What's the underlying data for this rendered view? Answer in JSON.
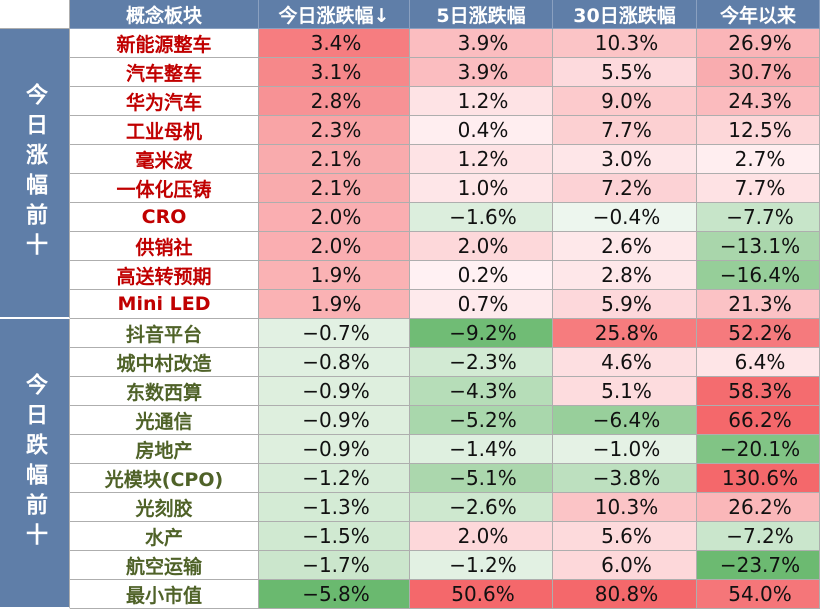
{
  "chart_data": {
    "type": "table",
    "columns": [
      "概念板块",
      "今日涨跌幅↓",
      "5日涨跌幅",
      "30日涨跌幅",
      "今年以来"
    ],
    "groups": [
      {
        "label": "今日涨幅前十",
        "rows": [
          {
            "name": "新能源整车",
            "values": [
              "3.4%",
              "3.9%",
              "10.3%",
              "26.9%"
            ],
            "nums": [
              3.4,
              3.9,
              10.3,
              26.9
            ]
          },
          {
            "name": "汽车整车",
            "values": [
              "3.1%",
              "3.9%",
              "5.5%",
              "30.7%"
            ],
            "nums": [
              3.1,
              3.9,
              5.5,
              30.7
            ]
          },
          {
            "name": "华为汽车",
            "values": [
              "2.8%",
              "1.2%",
              "9.0%",
              "24.3%"
            ],
            "nums": [
              2.8,
              1.2,
              9.0,
              24.3
            ]
          },
          {
            "name": "工业母机",
            "values": [
              "2.3%",
              "0.4%",
              "7.7%",
              "12.5%"
            ],
            "nums": [
              2.3,
              0.4,
              7.7,
              12.5
            ]
          },
          {
            "name": "毫米波",
            "values": [
              "2.1%",
              "1.2%",
              "3.0%",
              "2.7%"
            ],
            "nums": [
              2.1,
              1.2,
              3.0,
              2.7
            ]
          },
          {
            "name": "一体化压铸",
            "values": [
              "2.1%",
              "1.0%",
              "7.2%",
              "7.7%"
            ],
            "nums": [
              2.1,
              1.0,
              7.2,
              7.7
            ]
          },
          {
            "name": "CRO",
            "values": [
              "2.0%",
              "−1.6%",
              "−0.4%",
              "−7.7%"
            ],
            "nums": [
              2.0,
              -1.6,
              -0.4,
              -7.7
            ]
          },
          {
            "name": "供销社",
            "values": [
              "2.0%",
              "2.0%",
              "2.6%",
              "−13.1%"
            ],
            "nums": [
              2.0,
              2.0,
              2.6,
              -13.1
            ]
          },
          {
            "name": "高送转预期",
            "values": [
              "1.9%",
              "0.2%",
              "2.8%",
              "−16.4%"
            ],
            "nums": [
              1.9,
              0.2,
              2.8,
              -16.4
            ]
          },
          {
            "name": "Mini LED",
            "values": [
              "1.9%",
              "0.7%",
              "5.9%",
              "21.3%"
            ],
            "nums": [
              1.9,
              0.7,
              5.9,
              21.3
            ]
          }
        ]
      },
      {
        "label": "今日跌幅前十",
        "rows": [
          {
            "name": "抖音平台",
            "values": [
              "−0.7%",
              "−9.2%",
              "25.8%",
              "52.2%"
            ],
            "nums": [
              -0.7,
              -9.2,
              25.8,
              52.2
            ]
          },
          {
            "name": "城中村改造",
            "values": [
              "−0.8%",
              "−2.3%",
              "4.6%",
              "6.4%"
            ],
            "nums": [
              -0.8,
              -2.3,
              4.6,
              6.4
            ]
          },
          {
            "name": "东数西算",
            "values": [
              "−0.9%",
              "−4.3%",
              "5.1%",
              "58.3%"
            ],
            "nums": [
              -0.9,
              -4.3,
              5.1,
              58.3
            ]
          },
          {
            "name": "光通信",
            "values": [
              "−0.9%",
              "−5.2%",
              "−6.4%",
              "66.2%"
            ],
            "nums": [
              -0.9,
              -5.2,
              -6.4,
              66.2
            ]
          },
          {
            "name": "房地产",
            "values": [
              "−0.9%",
              "−1.4%",
              "−1.0%",
              "−20.1%"
            ],
            "nums": [
              -0.9,
              -1.4,
              -1.0,
              -20.1
            ]
          },
          {
            "name": "光模块(CPO)",
            "values": [
              "−1.2%",
              "−5.1%",
              "−3.8%",
              "130.6%"
            ],
            "nums": [
              -1.2,
              -5.1,
              -3.8,
              130.6
            ]
          },
          {
            "name": "光刻胶",
            "values": [
              "−1.3%",
              "−2.6%",
              "10.3%",
              "26.2%"
            ],
            "nums": [
              -1.3,
              -2.6,
              10.3,
              26.2
            ]
          },
          {
            "name": "水产",
            "values": [
              "−1.5%",
              "2.0%",
              "5.6%",
              "−7.2%"
            ],
            "nums": [
              -1.5,
              2.0,
              5.6,
              -7.2
            ]
          },
          {
            "name": "航空运输",
            "values": [
              "−1.7%",
              "−1.2%",
              "6.0%",
              "−23.7%"
            ],
            "nums": [
              -1.7,
              -1.2,
              6.0,
              -23.7
            ]
          },
          {
            "name": "最小市值",
            "values": [
              "−5.8%",
              "50.6%",
              "80.8%",
              "54.0%"
            ],
            "nums": [
              -5.8,
              50.6,
              80.8,
              54.0
            ]
          }
        ]
      }
    ]
  }
}
